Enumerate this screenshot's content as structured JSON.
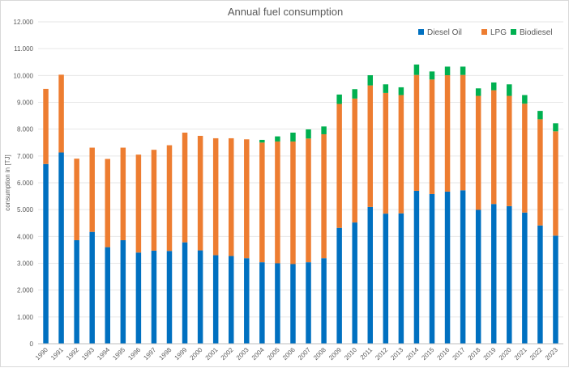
{
  "chart_data": {
    "type": "bar",
    "stacked": true,
    "title": "Annual fuel consumption",
    "xlabel": "",
    "ylabel": "consumption in [TJ]",
    "ylim": [
      0,
      12000
    ],
    "ytick_step": 1000,
    "ytick_labels": [
      "0",
      "1.000",
      "2.000",
      "3.000",
      "4.000",
      "5.000",
      "6.000",
      "7.000",
      "8.000",
      "9.000",
      "10.000",
      "11.000",
      "12.000"
    ],
    "grid": true,
    "legend_position": "top-right",
    "categories": [
      "1990",
      "1991",
      "1992",
      "1993",
      "1994",
      "1995",
      "1996",
      "1997",
      "1998",
      "1999",
      "2000",
      "2001",
      "2002",
      "2003",
      "2004",
      "2005",
      "2006",
      "2007",
      "2008",
      "2009",
      "2010",
      "2011",
      "2012",
      "2013",
      "2014",
      "2015",
      "2016",
      "2017",
      "2018",
      "2019",
      "2020",
      "2021",
      "2022",
      "2023"
    ],
    "series": [
      {
        "name": "Diesel Oil",
        "color": "#0070C0",
        "values": [
          6700,
          7130,
          3860,
          4170,
          3600,
          3860,
          3400,
          3470,
          3460,
          3780,
          3480,
          3300,
          3270,
          3190,
          3040,
          3000,
          2970,
          3040,
          3190,
          4320,
          4520,
          5100,
          4850,
          4860,
          5700,
          5580,
          5670,
          5720,
          4990,
          5210,
          5130,
          4890,
          4410,
          4030
        ]
      },
      {
        "name": "LPG",
        "color": "#ED7D31",
        "values": [
          2800,
          2900,
          3040,
          3140,
          3290,
          3450,
          3650,
          3760,
          3940,
          4090,
          4270,
          4360,
          4390,
          4430,
          4460,
          4540,
          4570,
          4610,
          4620,
          4620,
          4620,
          4530,
          4500,
          4410,
          4320,
          4270,
          4340,
          4300,
          4250,
          4240,
          4110,
          4060,
          3960,
          3890
        ]
      },
      {
        "name": "Biodiesel",
        "color": "#00B050",
        "values": [
          0,
          0,
          0,
          0,
          0,
          0,
          0,
          0,
          0,
          0,
          0,
          0,
          0,
          0,
          100,
          190,
          330,
          340,
          290,
          350,
          350,
          380,
          320,
          290,
          390,
          300,
          320,
          310,
          280,
          290,
          430,
          320,
          310,
          300
        ]
      }
    ]
  }
}
